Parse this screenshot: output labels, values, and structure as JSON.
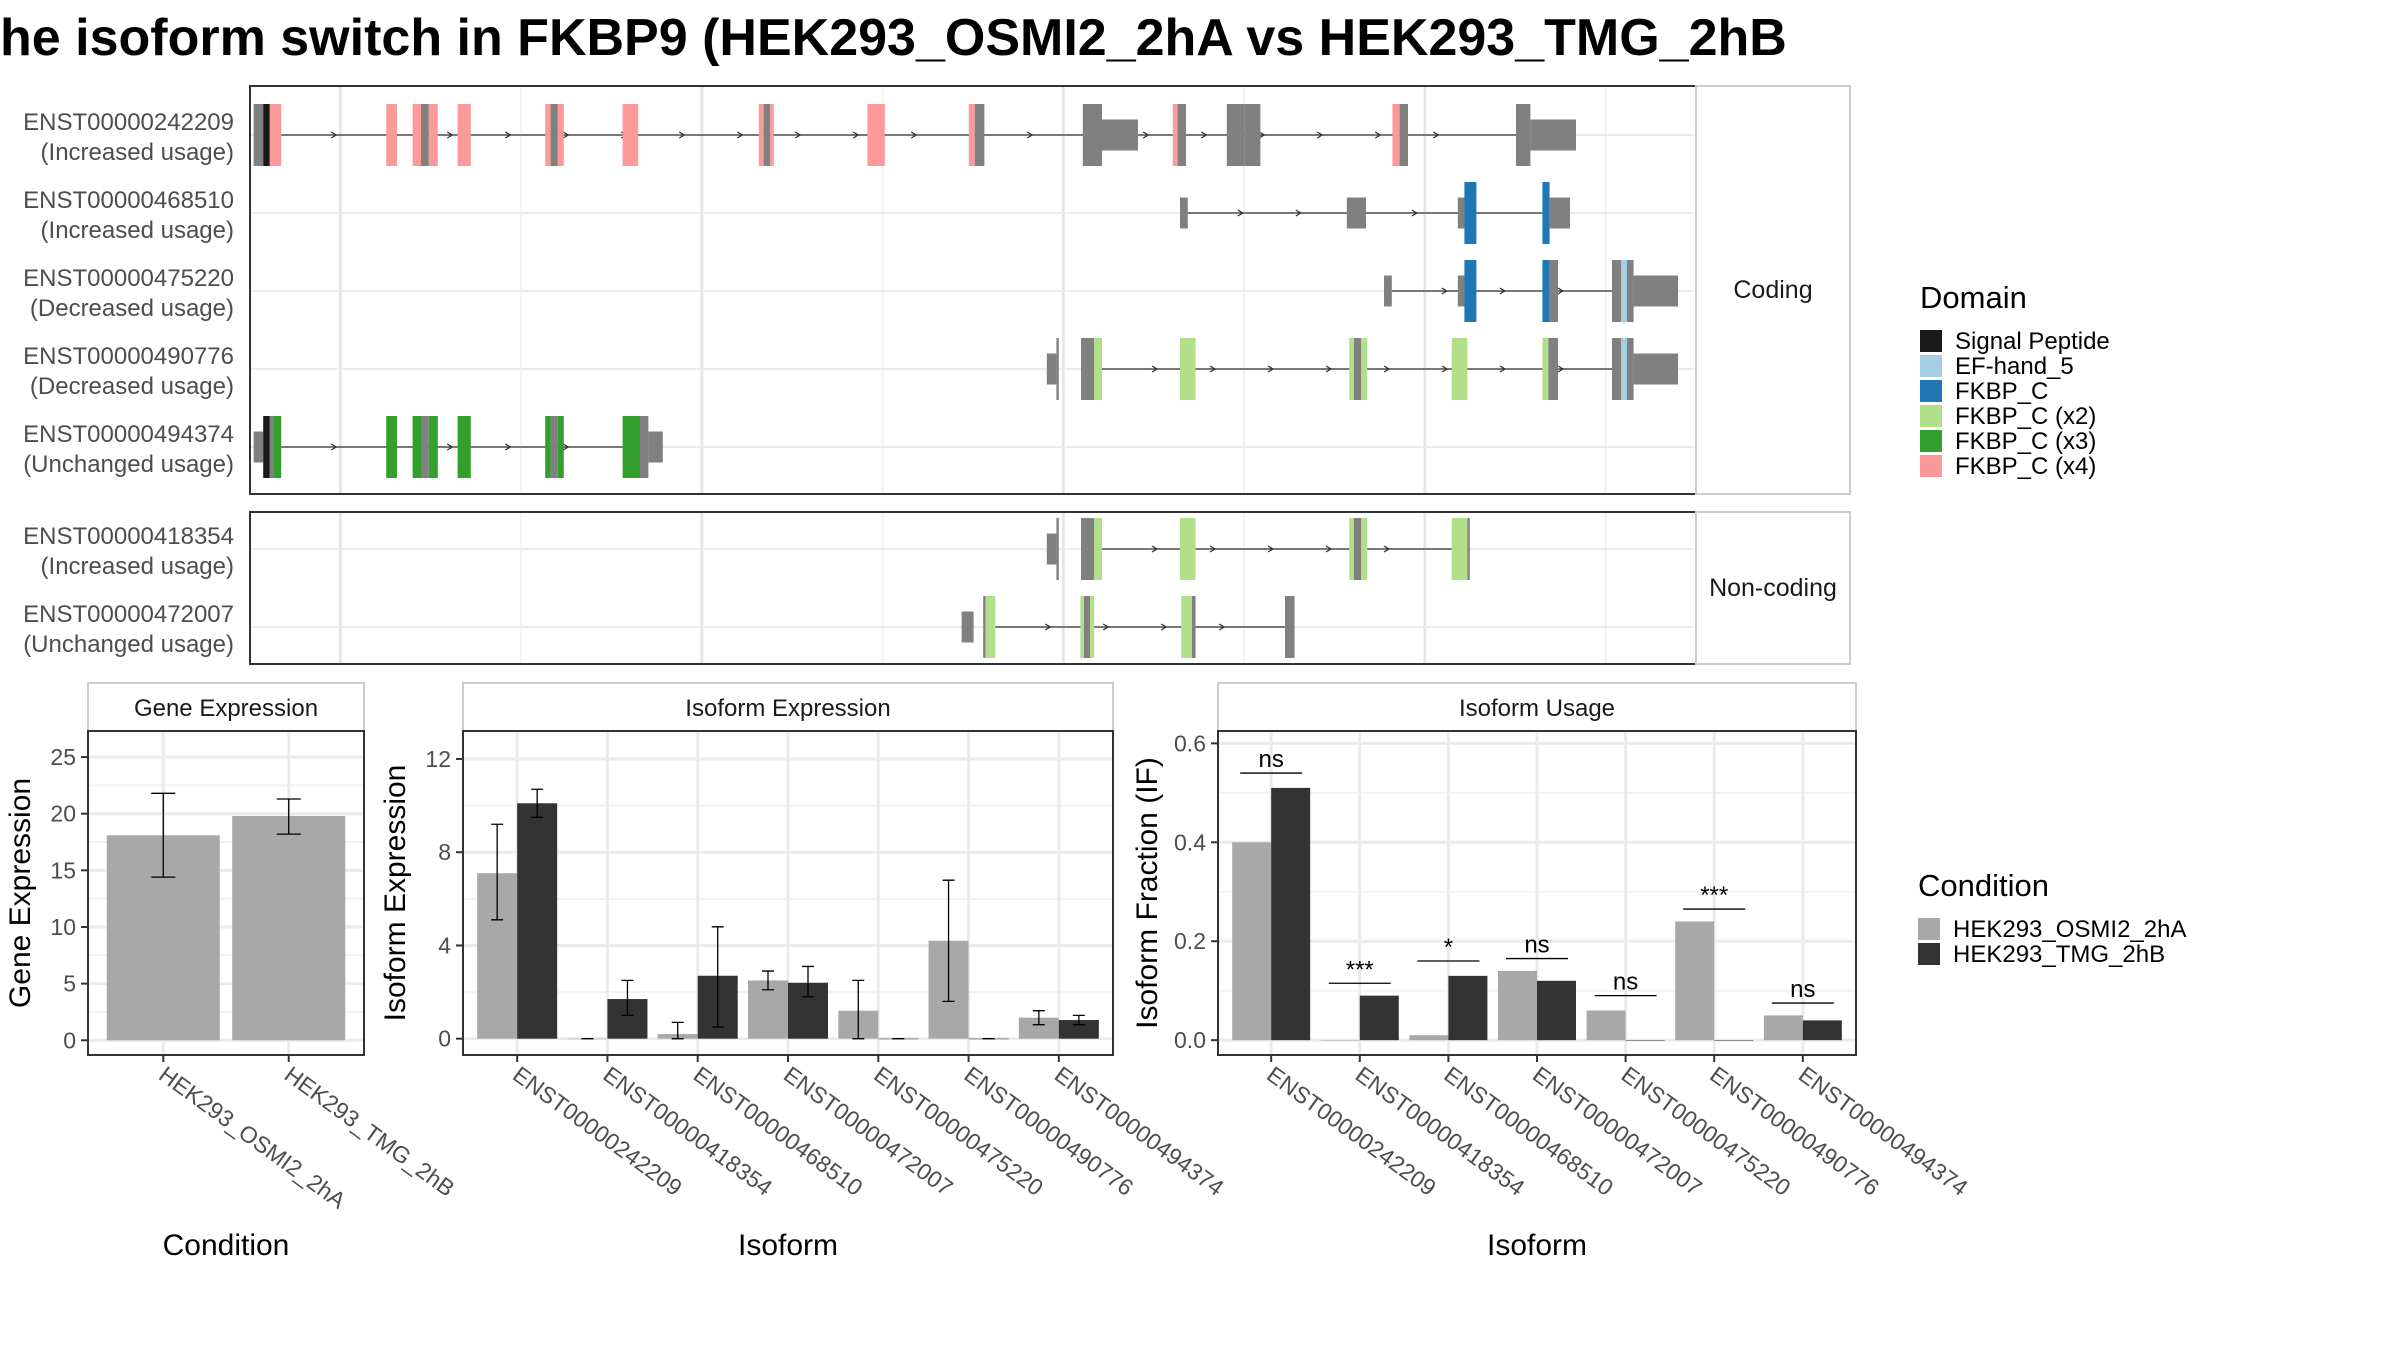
{
  "title": "he isoform switch in FKBP9 (HEK293_OSMI2_2hA vs HEK293_TMG_2hB",
  "colors": {
    "exon": "#808080",
    "condA": "#a8a8a8",
    "condB": "#333333",
    "domains": {
      "Signal Peptide": "#1a1a1a",
      "EF-hand_5": "#a6cee3",
      "FKBP_C": "#1f78b4",
      "FKBP_C (x2)": "#b2df8a",
      "FKBP_C (x3)": "#33a02c",
      "FKBP_C (x4)": "#fb9a99"
    }
  },
  "structure": {
    "facets": [
      {
        "label": "Coding",
        "transcripts": [
          {
            "id": "ENST00000242209",
            "usage": "(Increased usage)",
            "exons": [
              [
                6,
                22,
                "exon",
                1
              ],
              [
                22,
                33,
                "Signal Peptide",
                1
              ],
              [
                33,
                40,
                "FKBP_C (x4)",
                1
              ],
              [
                40,
                52,
                "FKBP_C (x4)",
                1
              ],
              [
                227,
                245,
                "FKBP_C (x4)",
                1
              ],
              [
                271,
                285,
                "FKBP_C (x4)",
                1
              ],
              [
                285,
                298,
                "exon",
                1
              ],
              [
                298,
                313,
                "FKBP_C (x4)",
                1
              ],
              [
                346,
                368,
                "FKBP_C (x4)",
                1
              ],
              [
                492,
                501,
                "FKBP_C (x4)",
                1
              ],
              [
                501,
                513,
                "exon",
                1
              ],
              [
                513,
                523,
                "FKBP_C (x4)",
                1
              ],
              [
                621,
                647,
                "FKBP_C (x4)",
                1
              ],
              [
                848,
                856,
                "FKBP_C (x4)",
                1
              ],
              [
                856,
                867,
                "exon",
                1
              ],
              [
                867,
                873,
                "FKBP_C (x4)",
                1
              ],
              [
                1029,
                1058,
                "FKBP_C (x4)",
                1
              ],
              [
                1198,
                1208,
                "FKBP_C (x4)",
                1
              ],
              [
                1208,
                1224,
                "exon",
                1
              ],
              [
                1388,
                1420,
                "exon",
                1
              ],
              [
                1420,
                1480,
                "exon",
                0.5
              ],
              [
                1538,
                1546,
                "FKBP_C (x4)",
                1
              ],
              [
                1546,
                1560,
                "exon",
                1
              ],
              [
                1628,
                1658,
                "exon",
                1
              ],
              [
                1658,
                1684,
                "exon",
                1
              ],
              [
                1904,
                1916,
                "FKBP_C (x4)",
                1
              ],
              [
                1916,
                1930,
                "exon",
                1
              ],
              [
                2110,
                2134,
                "exon",
                1
              ],
              [
                2134,
                2210,
                "exon",
                0.5
              ]
            ],
            "intron": [
              52,
              2110
            ]
          },
          {
            "id": "ENST00000468510",
            "usage": "(Increased usage)",
            "exons": [
              [
                1550,
                1563,
                "exon",
                0.5
              ],
              [
                1828,
                1860,
                "exon",
                0.5
              ],
              [
                2013,
                2024,
                "exon",
                0.5
              ],
              [
                2024,
                2044,
                "FKBP_C",
                1
              ],
              [
                2154,
                2166,
                "FKBP_C",
                1
              ],
              [
                2166,
                2190,
                "exon",
                0.9
              ],
              [
                2190,
                2200,
                "exon",
                0.5
              ]
            ],
            "intron": [
              1563,
              2154
            ]
          },
          {
            "id": "ENST00000475220",
            "usage": "(Decreased usage)",
            "exons": [
              [
                1890,
                1903,
                "exon",
                0.5
              ],
              [
                2013,
                2024,
                "exon",
                0.5
              ],
              [
                2024,
                2044,
                "FKBP_C",
                1
              ],
              [
                2154,
                2166,
                "FKBP_C",
                1
              ],
              [
                2166,
                2180,
                "exon",
                1
              ],
              [
                2270,
                2285,
                "exon",
                1
              ],
              [
                2285,
                2295,
                "EF-hand_5",
                1
              ],
              [
                2295,
                2306,
                "exon",
                1
              ],
              [
                2306,
                2380,
                "exon",
                0.5
              ]
            ],
            "intron": [
              1903,
              2270
            ]
          },
          {
            "id": "ENST00000490776",
            "usage": "(Decreased usage)",
            "exons": [
              [
                1328,
                1344,
                "exon",
                0.5
              ],
              [
                1344,
                1348,
                "exon",
                1
              ],
              [
                1385,
                1407,
                "exon",
                1
              ],
              [
                1407,
                1420,
                "FKBP_C (x2)",
                1
              ],
              [
                1550,
                1576,
                "FKBP_C (x2)",
                1
              ],
              [
                1832,
                1840,
                "FKBP_C (x2)",
                1
              ],
              [
                1840,
                1852,
                "exon",
                1
              ],
              [
                1852,
                1862,
                "FKBP_C (x2)",
                1
              ],
              [
                2003,
                2029,
                "FKBP_C (x2)",
                1
              ],
              [
                2154,
                2164,
                "FKBP_C (x2)",
                1
              ],
              [
                2164,
                2180,
                "exon",
                1
              ],
              [
                2270,
                2285,
                "exon",
                1
              ],
              [
                2285,
                2295,
                "EF-hand_5",
                1
              ],
              [
                2295,
                2306,
                "exon",
                1
              ],
              [
                2306,
                2380,
                "exon",
                0.5
              ]
            ],
            "intron": [
              1420,
              2270
            ]
          },
          {
            "id": "ENST00000494374",
            "usage": "(Unchanged usage)",
            "exons": [
              [
                6,
                22,
                "exon",
                0.5
              ],
              [
                22,
                33,
                "Signal Peptide",
                1
              ],
              [
                33,
                40,
                "exon",
                1
              ],
              [
                40,
                52,
                "FKBP_C (x3)",
                1
              ],
              [
                227,
                245,
                "FKBP_C (x3)",
                1
              ],
              [
                271,
                285,
                "FKBP_C (x3)",
                1
              ],
              [
                285,
                298,
                "exon",
                1
              ],
              [
                298,
                313,
                "FKBP_C (x3)",
                1
              ],
              [
                346,
                368,
                "FKBP_C (x3)",
                1
              ],
              [
                492,
                501,
                "FKBP_C (x3)",
                1
              ],
              [
                501,
                513,
                "exon",
                1
              ],
              [
                513,
                523,
                "FKBP_C (x3)",
                1
              ],
              [
                621,
                650,
                "FKBP_C (x3)",
                1
              ],
              [
                650,
                664,
                "exon",
                1
              ],
              [
                664,
                688,
                "exon",
                0.5
              ]
            ],
            "intron": [
              52,
              621
            ]
          }
        ]
      },
      {
        "label": "Non-coding",
        "transcripts": [
          {
            "id": "ENST00000418354",
            "usage": "(Increased usage)",
            "exons": [
              [
                1328,
                1344,
                "exon",
                0.5
              ],
              [
                1344,
                1348,
                "exon",
                1
              ],
              [
                1385,
                1407,
                "exon",
                1
              ],
              [
                1407,
                1420,
                "FKBP_C (x2)",
                1
              ],
              [
                1550,
                1576,
                "FKBP_C (x2)",
                1
              ],
              [
                1832,
                1840,
                "FKBP_C (x2)",
                1
              ],
              [
                1840,
                1852,
                "exon",
                1
              ],
              [
                1852,
                1862,
                "FKBP_C (x2)",
                1
              ],
              [
                2003,
                2029,
                "FKBP_C (x2)",
                1
              ],
              [
                2029,
                2033,
                "exon",
                1
              ]
            ],
            "intron": [
              1420,
              2003
            ]
          },
          {
            "id": "ENST00000472007",
            "usage": "(Unchanged usage)",
            "exons": [
              [
                1186,
                1206,
                "exon",
                0.5
              ],
              [
                1222,
                1226,
                "exon",
                1
              ],
              [
                1226,
                1242,
                "FKBP_C (x2)",
                1
              ],
              [
                1384,
                1390,
                "FKBP_C (x2)",
                1
              ],
              [
                1390,
                1400,
                "exon",
                1
              ],
              [
                1400,
                1407,
                "FKBP_C (x2)",
                1
              ],
              [
                1552,
                1570,
                "FKBP_C (x2)",
                1
              ],
              [
                1570,
                1576,
                "exon",
                1
              ],
              [
                1725,
                1741,
                "exon",
                1
              ]
            ],
            "intron": [
              1242,
              1725
            ]
          }
        ]
      }
    ]
  },
  "legend_domain": {
    "title": "Domain",
    "items": [
      "Signal Peptide",
      "EF-hand_5",
      "FKBP_C",
      "FKBP_C (x2)",
      "FKBP_C (x3)",
      "FKBP_C (x4)"
    ]
  },
  "legend_condition": {
    "title": "Condition",
    "items": [
      "HEK293_OSMI2_2hA",
      "HEK293_TMG_2hB"
    ]
  },
  "chart_data": [
    {
      "type": "bar",
      "title": "Gene Expression",
      "xlabel": "Condition",
      "ylabel": "Gene Expression",
      "categories": [
        "HEK293_OSMI2_2hA",
        "HEK293_TMG_2hB"
      ],
      "values": [
        18.1,
        19.8
      ],
      "errors": [
        [
          14.4,
          21.8
        ],
        [
          18.2,
          21.3
        ]
      ],
      "ylim": [
        -1.3,
        27.3
      ],
      "yticks": [
        0,
        5,
        10,
        15,
        20,
        25
      ],
      "grid": true
    },
    {
      "type": "bar",
      "title": "Isoform Expression",
      "xlabel": "Isoform",
      "ylabel": "Isoform Expression",
      "categories": [
        "ENST00000242209",
        "ENST00000418354",
        "ENST00000468510",
        "ENST00000472007",
        "ENST00000475220",
        "ENST00000490776",
        "ENST00000494374"
      ],
      "series": [
        {
          "name": "HEK293_OSMI2_2hA",
          "values": [
            7.1,
            0.0,
            0.2,
            2.5,
            1.2,
            4.2,
            0.9
          ],
          "errors": [
            [
              5.1,
              9.2
            ],
            [
              0,
              0
            ],
            [
              0,
              0.7
            ],
            [
              2.1,
              2.9
            ],
            [
              0,
              2.5
            ],
            [
              1.6,
              6.8
            ],
            [
              0.6,
              1.2
            ]
          ]
        },
        {
          "name": "HEK293_TMG_2hB",
          "values": [
            10.1,
            1.7,
            2.7,
            2.4,
            0.0,
            0.0,
            0.8
          ],
          "errors": [
            [
              9.5,
              10.7
            ],
            [
              1.0,
              2.5
            ],
            [
              0.5,
              4.8
            ],
            [
              1.8,
              3.1
            ],
            [
              0,
              0
            ],
            [
              0,
              0
            ],
            [
              0.6,
              1.0
            ]
          ]
        }
      ],
      "ylim": [
        -0.7,
        13.2
      ],
      "yticks": [
        0,
        4,
        8,
        12
      ],
      "grid": true
    },
    {
      "type": "bar",
      "title": "Isoform Usage",
      "xlabel": "Isoform",
      "ylabel": "Isoform Fraction (IF)",
      "categories": [
        "ENST00000242209",
        "ENST00000418354",
        "ENST00000468510",
        "ENST00000472007",
        "ENST00000475220",
        "ENST00000490776",
        "ENST00000494374"
      ],
      "series": [
        {
          "name": "HEK293_OSMI2_2hA",
          "values": [
            0.4,
            0.0,
            0.01,
            0.14,
            0.06,
            0.24,
            0.05
          ]
        },
        {
          "name": "HEK293_TMG_2hB",
          "values": [
            0.51,
            0.09,
            0.13,
            0.12,
            0.0,
            0.0,
            0.04
          ]
        }
      ],
      "significance": [
        {
          "label": "ns",
          "y": 0.54
        },
        {
          "label": "***",
          "y": 0.115
        },
        {
          "label": "*",
          "y": 0.16
        },
        {
          "label": "ns",
          "y": 0.165
        },
        {
          "label": "ns",
          "y": 0.09
        },
        {
          "label": "***",
          "y": 0.265
        },
        {
          "label": "ns",
          "y": 0.075
        }
      ],
      "ylim": [
        -0.03,
        0.625
      ],
      "yticks": [
        0.0,
        0.2,
        0.4,
        0.6
      ],
      "yticklabels": [
        "0.0",
        "0.2",
        "0.4",
        "0.6"
      ],
      "grid": true
    }
  ]
}
